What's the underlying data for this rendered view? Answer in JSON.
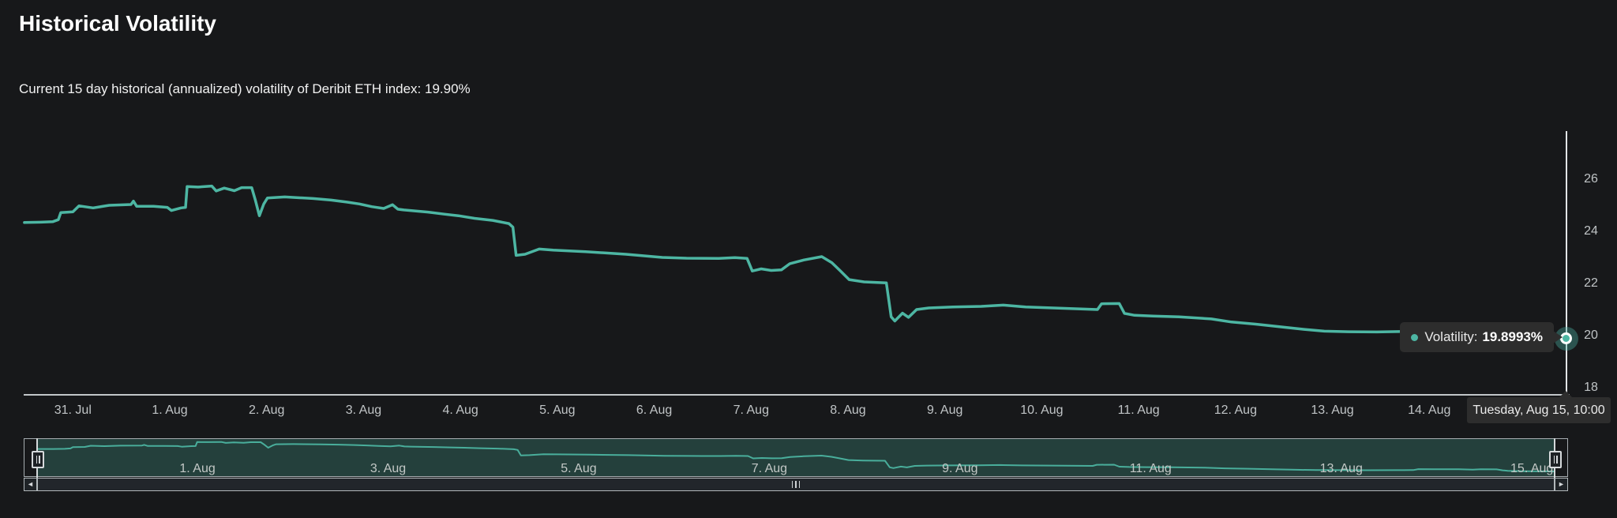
{
  "header": {
    "title": "Historical Volatility",
    "subtitle": "Current 15 day historical (annualized) volatility of Deribit ETH index: 19.90%"
  },
  "tooltip": {
    "series_label": "Volatility:",
    "value": "19.8993%"
  },
  "date_tooltip": {
    "text": "Tuesday, Aug 15, 10:00"
  },
  "scrollbar": {
    "left_glyph": "◄",
    "right_glyph": "►"
  },
  "colors": {
    "background": "#17181a",
    "line": "#4db6a3",
    "navigator_line": "#49ab99",
    "navigator_mask": "rgba(77,182,165,0.25)",
    "axis_line": "#c2c6c9",
    "label": "#c0c4c6",
    "crosshair": "#e2e5e7",
    "tooltip_bg": "#2d2d2d"
  },
  "chart_data": {
    "type": "line",
    "title": "Historical Volatility",
    "series_name": "Volatility",
    "unit": "%",
    "x_axis": {
      "labels": [
        "31. Jul",
        "1. Aug",
        "2. Aug",
        "3. Aug",
        "4. Aug",
        "5. Aug",
        "6. Aug",
        "7. Aug",
        "8. Aug",
        "9. Aug",
        "10. Aug",
        "11. Aug",
        "12. Aug",
        "13. Aug",
        "14. Aug"
      ]
    },
    "y_axis": {
      "ticks": [
        26,
        24,
        22,
        20,
        18
      ],
      "range": [
        17.7,
        28.9
      ],
      "opposite": true
    },
    "grid": false,
    "legend": false,
    "time_note": "points are [hours since Jul 31 00:00, volatility %]; series spans Jul 30 12:00 - Aug 15 10:00",
    "points": [
      [
        -12,
        24.34
      ],
      [
        -8,
        24.35
      ],
      [
        -5,
        24.37
      ],
      [
        -3.6,
        24.45
      ],
      [
        -3,
        24.72
      ],
      [
        0,
        24.75
      ],
      [
        1.5,
        24.98
      ],
      [
        5,
        24.9
      ],
      [
        9,
        25.0
      ],
      [
        14.4,
        25.03
      ],
      [
        15,
        25.16
      ],
      [
        15.8,
        24.96
      ],
      [
        20,
        24.96
      ],
      [
        23.4,
        24.92
      ],
      [
        24.4,
        24.8
      ],
      [
        26.8,
        24.9
      ],
      [
        27.9,
        24.92
      ],
      [
        28.3,
        25.72
      ],
      [
        31,
        25.7
      ],
      [
        34.4,
        25.74
      ],
      [
        35.5,
        25.55
      ],
      [
        37.5,
        25.66
      ],
      [
        40,
        25.56
      ],
      [
        41.8,
        25.68
      ],
      [
        44.3,
        25.68
      ],
      [
        45.2,
        25.2
      ],
      [
        46.2,
        24.6
      ],
      [
        47.3,
        25.05
      ],
      [
        48.2,
        25.28
      ],
      [
        52.5,
        25.32
      ],
      [
        59.5,
        25.26
      ],
      [
        64,
        25.2
      ],
      [
        68,
        25.12
      ],
      [
        71,
        25.05
      ],
      [
        74,
        24.95
      ],
      [
        77,
        24.88
      ],
      [
        79.2,
        25.02
      ],
      [
        80.5,
        24.85
      ],
      [
        82,
        24.82
      ],
      [
        88,
        24.74
      ],
      [
        92,
        24.66
      ],
      [
        95.5,
        24.6
      ],
      [
        99.5,
        24.5
      ],
      [
        104,
        24.42
      ],
      [
        108,
        24.3
      ],
      [
        109,
        24.16
      ],
      [
        109.8,
        23.08
      ],
      [
        112,
        23.12
      ],
      [
        115.5,
        23.32
      ],
      [
        119,
        23.28
      ],
      [
        127,
        23.22
      ],
      [
        137,
        23.12
      ],
      [
        146,
        23.0
      ],
      [
        152,
        22.97
      ],
      [
        160,
        22.96
      ],
      [
        164,
        22.99
      ],
      [
        167,
        22.96
      ],
      [
        168.3,
        22.48
      ],
      [
        170.5,
        22.56
      ],
      [
        173,
        22.5
      ],
      [
        175.5,
        22.52
      ],
      [
        177.6,
        22.76
      ],
      [
        181,
        22.9
      ],
      [
        185.5,
        23.03
      ],
      [
        188,
        22.8
      ],
      [
        190,
        22.5
      ],
      [
        192.3,
        22.15
      ],
      [
        196,
        22.06
      ],
      [
        201.5,
        22.02
      ],
      [
        202.7,
        20.72
      ],
      [
        203.6,
        20.56
      ],
      [
        205.5,
        20.86
      ],
      [
        207,
        20.7
      ],
      [
        209,
        21.0
      ],
      [
        212,
        21.06
      ],
      [
        218,
        21.1
      ],
      [
        225,
        21.12
      ],
      [
        230.5,
        21.17
      ],
      [
        236,
        21.1
      ],
      [
        247,
        21.04
      ],
      [
        253.8,
        21.0
      ],
      [
        254.8,
        21.22
      ],
      [
        259.2,
        21.23
      ],
      [
        260.5,
        20.85
      ],
      [
        263,
        20.78
      ],
      [
        267.5,
        20.75
      ],
      [
        274,
        20.72
      ],
      [
        282,
        20.64
      ],
      [
        287,
        20.52
      ],
      [
        293,
        20.44
      ],
      [
        300,
        20.32
      ],
      [
        305,
        20.24
      ],
      [
        310,
        20.17
      ],
      [
        316,
        20.15
      ],
      [
        323,
        20.14
      ],
      [
        330,
        20.16
      ],
      [
        334.5,
        20.17
      ],
      [
        335.8,
        20.36
      ],
      [
        340,
        20.35
      ],
      [
        346,
        20.34
      ],
      [
        349.5,
        20.25
      ],
      [
        351.5,
        20.33
      ],
      [
        355.5,
        20.31
      ],
      [
        357,
        20.12
      ],
      [
        358.3,
        20.02
      ],
      [
        362,
        19.96
      ],
      [
        366,
        19.92
      ],
      [
        370,
        19.8993
      ]
    ],
    "current_point": {
      "time": "Tuesday, Aug 15, 10:00",
      "value": 19.8993
    },
    "navigator": {
      "labels": [
        "1. Aug",
        "3. Aug",
        "5. Aug",
        "7. Aug",
        "9. Aug",
        "11. Aug",
        "13. Aug",
        "15. Aug"
      ]
    }
  }
}
